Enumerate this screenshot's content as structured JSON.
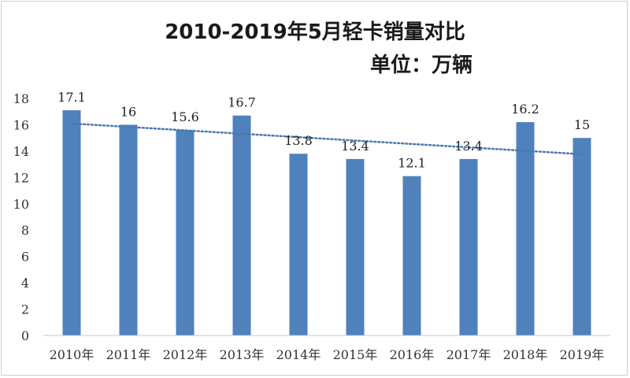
{
  "chart_data": {
    "type": "bar",
    "title": "2010-2019年5月轻卡销量对比",
    "subtitle": "单位：万辆",
    "categories": [
      "2010年",
      "2011年",
      "2012年",
      "2013年",
      "2014年",
      "2015年",
      "2016年",
      "2017年",
      "2018年",
      "2019年"
    ],
    "values": [
      17.1,
      16,
      15.6,
      16.7,
      13.8,
      13.4,
      12.1,
      13.4,
      16.2,
      15
    ],
    "data_labels": [
      "17.1",
      "16",
      "15.6",
      "16.7",
      "13.8",
      "13.4",
      "12.1",
      "13.4",
      "16.2",
      "15"
    ],
    "yticks": [
      "0",
      "2",
      "4",
      "6",
      "8",
      "10",
      "12",
      "14",
      "16",
      "18"
    ],
    "ylim": [
      0,
      18
    ],
    "trendline": {
      "type": "linear",
      "style": "dotted"
    },
    "grid": false,
    "legend": "none",
    "colors": {
      "bar": "#4f81bd",
      "trend": "#4a78b0"
    }
  }
}
